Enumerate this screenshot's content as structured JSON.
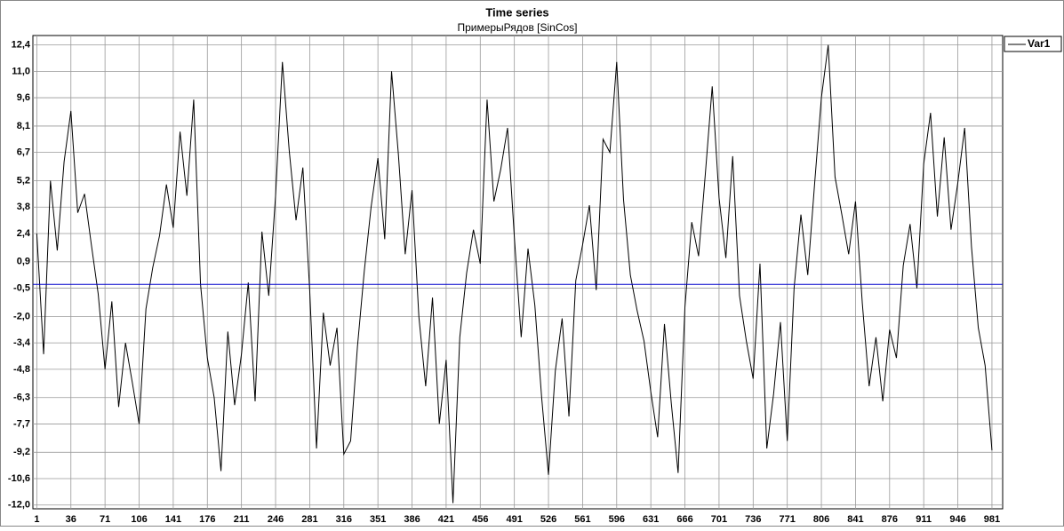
{
  "chart_data": {
    "type": "line",
    "title": "Time series",
    "subtitle": "ПримерыРядов [SinCos]",
    "x": [
      1,
      8,
      15,
      22,
      29,
      36,
      43,
      50,
      57,
      64,
      71,
      78,
      85,
      92,
      99,
      106,
      113,
      120,
      127,
      134,
      141,
      148,
      155,
      162,
      169,
      176,
      183,
      190,
      197,
      204,
      211,
      218,
      225,
      232,
      239,
      246,
      253,
      260,
      267,
      274,
      281,
      288,
      295,
      302,
      309,
      316,
      323,
      330,
      337,
      344,
      351,
      358,
      365,
      372,
      379,
      386,
      393,
      400,
      407,
      414,
      421,
      428,
      435,
      442,
      449,
      456,
      463,
      470,
      477,
      484,
      491,
      498,
      505,
      512,
      519,
      526,
      533,
      540,
      547,
      554,
      561,
      568,
      575,
      582,
      589,
      596,
      603,
      610,
      617,
      624,
      631,
      638,
      645,
      652,
      659,
      666,
      673,
      680,
      687,
      694,
      701,
      708,
      715,
      722,
      729,
      736,
      743,
      750,
      757,
      764,
      771,
      778,
      785,
      792,
      799,
      806,
      813,
      820,
      827,
      834,
      841,
      848,
      855,
      862,
      869,
      876,
      883,
      890,
      897,
      904,
      911,
      918,
      925,
      932,
      939,
      946,
      953,
      960,
      967,
      974,
      981
    ],
    "series": [
      {
        "name": "Var1",
        "color": "#000000",
        "values": [
          2.4,
          -4.0,
          5.2,
          1.5,
          6.2,
          8.9,
          3.5,
          4.5,
          1.8,
          -0.8,
          -4.8,
          -1.2,
          -6.8,
          -3.4,
          -5.5,
          -7.7,
          -1.6,
          0.6,
          2.3,
          5.0,
          2.7,
          7.8,
          4.4,
          9.5,
          -0.3,
          -4.2,
          -6.3,
          -10.2,
          -2.8,
          -6.7,
          -4.0,
          -0.2,
          -6.5,
          2.5,
          -0.9,
          4.4,
          11.5,
          6.8,
          3.1,
          5.9,
          -0.6,
          -9.0,
          -1.8,
          -4.6,
          -2.6,
          -9.3,
          -8.6,
          -3.6,
          0.4,
          3.8,
          6.4,
          2.1,
          11.0,
          6.6,
          1.3,
          4.7,
          -2.0,
          -5.7,
          -1.0,
          -7.7,
          -4.3,
          -11.9,
          -3.1,
          0.3,
          2.6,
          0.8,
          9.5,
          4.1,
          5.8,
          8.0,
          2.2,
          -3.1,
          1.6,
          -1.4,
          -6.3,
          -10.4,
          -4.9,
          -2.1,
          -7.3,
          -0.1,
          1.8,
          3.9,
          -0.6,
          7.4,
          6.7,
          11.5,
          4.2,
          0.2,
          -1.7,
          -3.3,
          -6.0,
          -8.4,
          -2.4,
          -6.6,
          -10.3,
          -1.5,
          3.0,
          1.2,
          5.6,
          10.2,
          4.3,
          1.1,
          6.5,
          -0.9,
          -3.3,
          -5.3,
          0.8,
          -9.0,
          -6.1,
          -2.3,
          -8.6,
          -0.5,
          3.4,
          0.2,
          5.0,
          9.6,
          12.4,
          5.4,
          3.4,
          1.3,
          4.1,
          -1.3,
          -5.7,
          -3.1,
          -6.5,
          -2.7,
          -4.2,
          0.7,
          2.9,
          -0.5,
          6.1,
          8.8,
          3.3,
          7.5,
          2.6,
          5.1,
          8.0,
          1.7,
          -2.6,
          -4.6,
          -9.1
        ]
      }
    ],
    "reference_line": {
      "value": -0.3,
      "color": "#0000cc"
    },
    "xlim": [
      -3,
      992
    ],
    "xticks": [
      1,
      36,
      71,
      106,
      141,
      176,
      211,
      246,
      281,
      316,
      351,
      386,
      421,
      456,
      491,
      526,
      561,
      596,
      631,
      666,
      701,
      736,
      771,
      806,
      841,
      876,
      911,
      946,
      981
    ],
    "ylim": [
      -12.2,
      12.9
    ],
    "yticks": [
      {
        "value": 12.4,
        "label": "12,4"
      },
      {
        "value": 11.0,
        "label": "11,0"
      },
      {
        "value": 9.6,
        "label": "9,6"
      },
      {
        "value": 8.1,
        "label": "8,1"
      },
      {
        "value": 6.7,
        "label": "6,7"
      },
      {
        "value": 5.2,
        "label": "5,2"
      },
      {
        "value": 3.8,
        "label": "3,8"
      },
      {
        "value": 2.4,
        "label": "2,4"
      },
      {
        "value": 0.9,
        "label": "0,9"
      },
      {
        "value": -0.5,
        "label": "-0,5"
      },
      {
        "value": -2.0,
        "label": "-2,0"
      },
      {
        "value": -3.4,
        "label": "-3,4"
      },
      {
        "value": -4.8,
        "label": "-4,8"
      },
      {
        "value": -6.3,
        "label": "-6,3"
      },
      {
        "value": -7.7,
        "label": "-7,7"
      },
      {
        "value": -9.2,
        "label": "-9,2"
      },
      {
        "value": -10.6,
        "label": "-10,6"
      },
      {
        "value": -12.0,
        "label": "-12,0"
      }
    ],
    "grid": true,
    "legend": "top-right"
  }
}
